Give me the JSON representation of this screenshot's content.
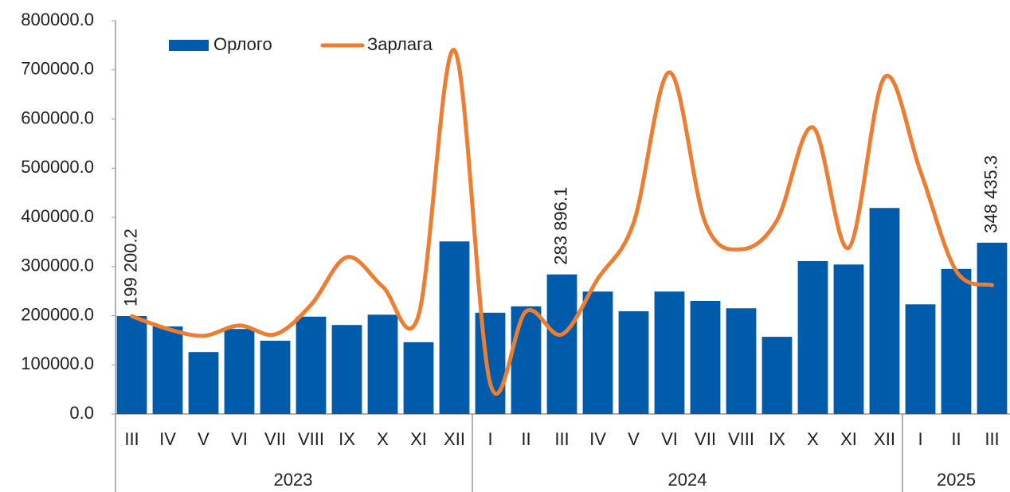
{
  "chart_data": {
    "type": "bar",
    "categories": [
      "III",
      "IV",
      "V",
      "VI",
      "VII",
      "VIII",
      "IX",
      "X",
      "XI",
      "XII",
      "I",
      "II",
      "III",
      "IV",
      "V",
      "VI",
      "VII",
      "VIII",
      "IX",
      "X",
      "XI",
      "XII",
      "I",
      "II",
      "III"
    ],
    "x_groups": [
      {
        "label": "2023",
        "size": 10
      },
      {
        "label": "2024",
        "size": 12
      },
      {
        "label": "2025",
        "size": 3
      }
    ],
    "series": [
      {
        "name": "Орлого",
        "type": "bar",
        "color": "#005bab",
        "values": [
          199200.2,
          178000,
          126000,
          173000,
          149000,
          198000,
          181000,
          202000,
          146000,
          351000,
          206000,
          219000,
          283896.1,
          249000,
          209000,
          249000,
          230000,
          215000,
          157000,
          311000,
          304000,
          419000,
          223000,
          295000,
          348435.3
        ],
        "value_labels": [
          "199 200.2",
          null,
          null,
          null,
          null,
          null,
          null,
          null,
          null,
          null,
          null,
          null,
          "283 896.1",
          null,
          null,
          null,
          null,
          null,
          null,
          null,
          null,
          null,
          null,
          null,
          "348 435.3"
        ]
      },
      {
        "name": "Зарлага",
        "type": "line",
        "color": "#ed7d31",
        "values": [
          199000,
          173000,
          159000,
          180000,
          162000,
          222000,
          319000,
          259000,
          201000,
          740000,
          62000,
          209000,
          162000,
          275000,
          389000,
          695000,
          389000,
          335000,
          394000,
          583000,
          338000,
          685000,
          494000,
          291000,
          262000
        ]
      }
    ],
    "ylim": [
      0,
      800000
    ],
    "yticks": [
      {
        "value": 0,
        "label": "0.0"
      },
      {
        "value": 100000,
        "label": "100000.0"
      },
      {
        "value": 200000,
        "label": "200000.0"
      },
      {
        "value": 300000,
        "label": "300000.0"
      },
      {
        "value": 400000,
        "label": "400000.0"
      },
      {
        "value": 500000,
        "label": "500000.0"
      },
      {
        "value": 600000,
        "label": "600000.0"
      },
      {
        "value": 700000,
        "label": "700000.0"
      },
      {
        "value": 800000,
        "label": "800000.0"
      }
    ],
    "grid": false,
    "legend": "top"
  }
}
